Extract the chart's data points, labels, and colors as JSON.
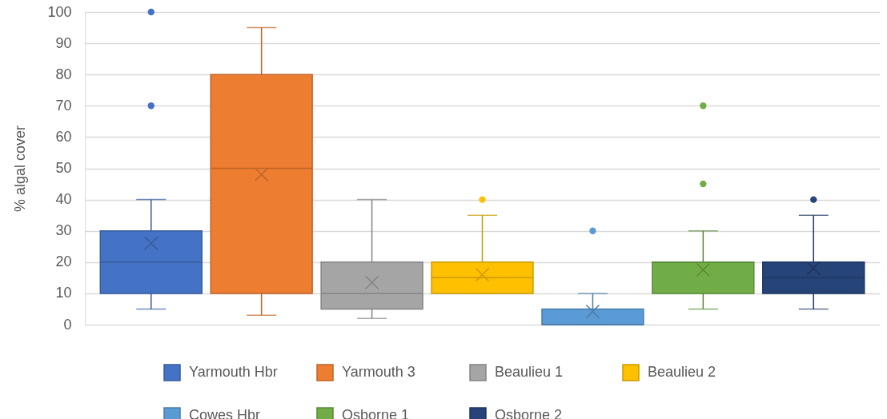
{
  "chart_data": {
    "type": "box",
    "ylabel": "% algal cover",
    "categories": [
      null
    ],
    "ylim": [
      0,
      100
    ],
    "yticks": [
      0,
      10,
      20,
      30,
      40,
      50,
      60,
      70,
      80,
      90,
      100
    ],
    "grid": "y",
    "legend": "bottom",
    "series": [
      {
        "name": "Yarmouth Hbr",
        "color": "#4472c4",
        "boxes": [
          {
            "low": 5,
            "q1": 10,
            "median": 20,
            "q3": 30,
            "high": 40,
            "mean": 26,
            "outliers": [
              70,
              100
            ]
          }
        ]
      },
      {
        "name": "Yarmouth 3",
        "color": "#ed7d31",
        "boxes": [
          {
            "low": 3,
            "q1": 10,
            "median": 50,
            "q3": 80,
            "high": 95,
            "mean": 48
          }
        ]
      },
      {
        "name": "Beaulieu 1",
        "color": "#a5a5a5",
        "boxes": [
          {
            "low": 2,
            "q1": 5,
            "median": 10,
            "q3": 20,
            "high": 40,
            "mean": 13.5
          }
        ]
      },
      {
        "name": "Beaulieu 2",
        "color": "#ffc000",
        "boxes": [
          {
            "low": 10,
            "q1": 10,
            "median": 15,
            "q3": 20,
            "high": 35,
            "mean": 16,
            "outliers": [
              40
            ]
          }
        ]
      },
      {
        "name": "Cowes Hbr",
        "color": "#5b9bd5",
        "boxes": [
          {
            "low": 0,
            "q1": 0,
            "median": 0,
            "q3": 5,
            "high": 10,
            "mean": 4.2,
            "outliers": [
              30
            ]
          }
        ]
      },
      {
        "name": "Osborne 1",
        "color": "#70ad47",
        "boxes": [
          {
            "low": 5,
            "q1": 10,
            "median": 20,
            "q3": 20,
            "high": 30,
            "mean": 17.5,
            "outliers": [
              45,
              70
            ]
          }
        ]
      },
      {
        "name": "Osborne 2",
        "color": "#264478",
        "boxes": [
          {
            "low": 5,
            "q1": 10,
            "median": 15,
            "q3": 20,
            "high": 35,
            "mean": 18,
            "outliers": [
              40
            ]
          }
        ]
      }
    ]
  }
}
